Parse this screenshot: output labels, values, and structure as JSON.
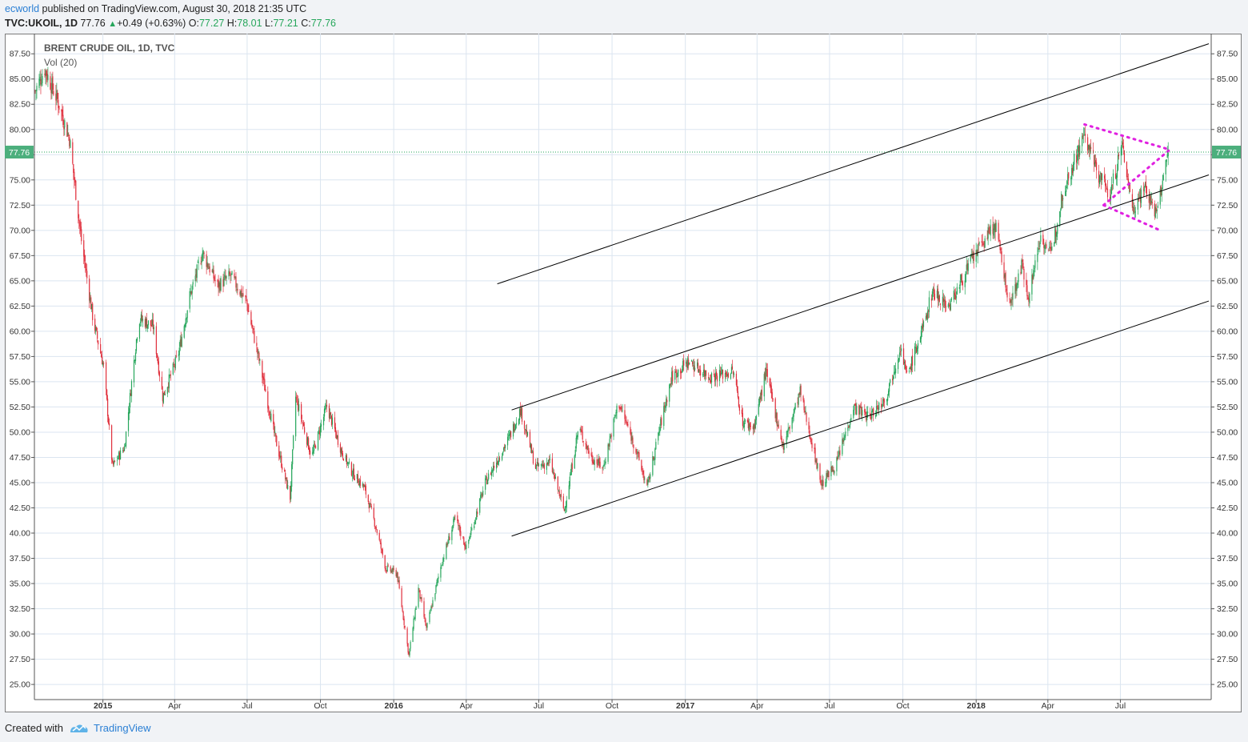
{
  "header": {
    "author": "ecworld",
    "published_text": " published on TradingView.com, August 30, 2018 21:35 UTC",
    "symbol": "TVC:UKOIL, 1D",
    "last": "77.76",
    "change_arrow": "▲",
    "change": "+0.49 (+0.63%)",
    "o_label": "O:",
    "o": "77.27",
    "h_label": "H:",
    "h": "78.01",
    "l_label": "L:",
    "l": "77.21",
    "c_label": "C:",
    "c": "77.76"
  },
  "footer": {
    "created_with": "Created with",
    "brand": "TradingView",
    "logo_icon": "tradingview-logo-icon"
  },
  "colors": {
    "up": "#26a65b",
    "down": "#e0303d",
    "grid": "#dbe5f0",
    "pattern": "#e020e0",
    "price_line": "#26a65b",
    "price_badge": "#4caf7d"
  },
  "chart_data": {
    "type": "candlestick",
    "title": "BRENT CRUDE OIL, 1D, TVC",
    "subtitle": "Vol (20)",
    "ylim": [
      23.5,
      89.5
    ],
    "xlim": [
      "2014-10-07",
      "2018-10-23"
    ],
    "grid": true,
    "y_ticks": [
      "25.00",
      "27.50",
      "30.00",
      "32.50",
      "35.00",
      "37.50",
      "40.00",
      "42.50",
      "45.00",
      "47.50",
      "50.00",
      "52.50",
      "55.00",
      "57.50",
      "60.00",
      "62.50",
      "65.00",
      "67.50",
      "70.00",
      "72.50",
      "75.00",
      "77.50",
      "80.00",
      "82.50",
      "85.00",
      "87.50"
    ],
    "x_ticks": [
      {
        "label": "2015",
        "date": "2015-01-01",
        "bold": true
      },
      {
        "label": "Apr",
        "date": "2015-04-01"
      },
      {
        "label": "Jul",
        "date": "2015-07-01"
      },
      {
        "label": "Oct",
        "date": "2015-10-01"
      },
      {
        "label": "2016",
        "date": "2016-01-01",
        "bold": true
      },
      {
        "label": "Apr",
        "date": "2016-04-01"
      },
      {
        "label": "Jul",
        "date": "2016-07-01"
      },
      {
        "label": "Oct",
        "date": "2016-10-01"
      },
      {
        "label": "2017",
        "date": "2017-01-01",
        "bold": true
      },
      {
        "label": "Apr",
        "date": "2017-04-01"
      },
      {
        "label": "Jul",
        "date": "2017-07-01"
      },
      {
        "label": "Oct",
        "date": "2017-10-01"
      },
      {
        "label": "2018",
        "date": "2018-01-01",
        "bold": true
      },
      {
        "label": "Apr",
        "date": "2018-04-01"
      },
      {
        "label": "Jul",
        "date": "2018-07-01"
      }
    ],
    "last_price": 77.76,
    "last_price_label": "77.76",
    "price_path": [
      [
        "2014-10-08",
        83.8
      ],
      [
        "2014-10-20",
        86.0
      ],
      [
        "2014-11-05",
        82.9
      ],
      [
        "2014-11-20",
        79.1
      ],
      [
        "2014-12-05",
        69.0
      ],
      [
        "2014-12-20",
        61.0
      ],
      [
        "2015-01-02",
        56.5
      ],
      [
        "2015-01-13",
        46.6
      ],
      [
        "2015-01-28",
        48.5
      ],
      [
        "2015-02-15",
        61.3
      ],
      [
        "2015-03-05",
        60.5
      ],
      [
        "2015-03-17",
        53.5
      ],
      [
        "2015-04-05",
        57.5
      ],
      [
        "2015-04-20",
        63.5
      ],
      [
        "2015-05-06",
        67.8
      ],
      [
        "2015-05-25",
        64.5
      ],
      [
        "2015-06-10",
        65.5
      ],
      [
        "2015-06-30",
        63.0
      ],
      [
        "2015-07-15",
        57.5
      ],
      [
        "2015-08-05",
        49.5
      ],
      [
        "2015-08-24",
        43.5
      ],
      [
        "2015-08-31",
        53.5
      ],
      [
        "2015-09-20",
        47.5
      ],
      [
        "2015-10-09",
        52.6
      ],
      [
        "2015-10-28",
        48.0
      ],
      [
        "2015-11-10",
        46.0
      ],
      [
        "2015-11-25",
        44.5
      ],
      [
        "2015-12-10",
        40.5
      ],
      [
        "2015-12-22",
        36.5
      ],
      [
        "2016-01-05",
        36.0
      ],
      [
        "2016-01-20",
        27.9
      ],
      [
        "2016-02-01",
        34.5
      ],
      [
        "2016-02-11",
        30.5
      ],
      [
        "2016-03-01",
        37.0
      ],
      [
        "2016-03-18",
        41.5
      ],
      [
        "2016-04-01",
        38.5
      ],
      [
        "2016-04-25",
        45.0
      ],
      [
        "2016-05-25",
        49.5
      ],
      [
        "2016-06-08",
        52.2
      ],
      [
        "2016-06-27",
        46.5
      ],
      [
        "2016-07-15",
        47.0
      ],
      [
        "2016-08-02",
        42.2
      ],
      [
        "2016-08-20",
        50.5
      ],
      [
        "2016-09-05",
        47.5
      ],
      [
        "2016-09-20",
        46.5
      ],
      [
        "2016-10-09",
        53.0
      ],
      [
        "2016-10-30",
        48.5
      ],
      [
        "2016-11-14",
        44.5
      ],
      [
        "2016-11-30",
        50.5
      ],
      [
        "2016-12-15",
        55.5
      ],
      [
        "2017-01-05",
        57.0
      ],
      [
        "2017-02-01",
        55.5
      ],
      [
        "2017-03-02",
        56.0
      ],
      [
        "2017-03-14",
        51.0
      ],
      [
        "2017-03-28",
        50.5
      ],
      [
        "2017-04-12",
        56.0
      ],
      [
        "2017-05-04",
        48.5
      ],
      [
        "2017-05-25",
        54.0
      ],
      [
        "2017-06-21",
        44.8
      ],
      [
        "2017-07-10",
        47.0
      ],
      [
        "2017-07-31",
        52.5
      ],
      [
        "2017-08-20",
        51.5
      ],
      [
        "2017-09-10",
        53.5
      ],
      [
        "2017-09-28",
        58.5
      ],
      [
        "2017-10-06",
        55.5
      ],
      [
        "2017-10-27",
        60.5
      ],
      [
        "2017-11-07",
        64.0
      ],
      [
        "2017-11-28",
        62.5
      ],
      [
        "2017-12-26",
        67.0
      ],
      [
        "2018-01-15",
        69.5
      ],
      [
        "2018-01-25",
        70.5
      ],
      [
        "2018-02-12",
        62.5
      ],
      [
        "2018-02-27",
        66.5
      ],
      [
        "2018-03-08",
        63.5
      ],
      [
        "2018-03-23",
        69.5
      ],
      [
        "2018-04-05",
        67.5
      ],
      [
        "2018-04-20",
        74.0
      ],
      [
        "2018-05-17",
        79.5
      ],
      [
        "2018-06-01",
        76.0
      ],
      [
        "2018-06-18",
        73.5
      ],
      [
        "2018-07-03",
        78.5
      ],
      [
        "2018-07-17",
        72.0
      ],
      [
        "2018-07-31",
        74.5
      ],
      [
        "2018-08-15",
        71.5
      ],
      [
        "2018-08-30",
        77.76
      ]
    ],
    "annotations": {
      "channel_lines": [
        [
          [
            "2016-05-10",
            64.7
          ],
          [
            "2018-10-20",
            88.5
          ]
        ],
        [
          [
            "2016-05-28",
            52.2
          ],
          [
            "2018-10-20",
            75.5
          ]
        ],
        [
          [
            "2016-05-28",
            39.7
          ],
          [
            "2018-10-20",
            63.0
          ]
        ]
      ],
      "pattern_lines": [
        [
          [
            "2018-05-17",
            80.5
          ],
          [
            "2018-09-01",
            78.0
          ]
        ],
        [
          [
            "2018-06-10",
            72.5
          ],
          [
            "2018-08-20",
            70.0
          ]
        ],
        [
          [
            "2018-06-10",
            72.5
          ],
          [
            "2018-09-01",
            78.0
          ]
        ]
      ]
    }
  }
}
